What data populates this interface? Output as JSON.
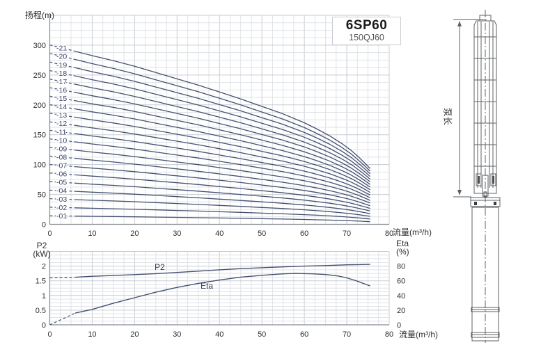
{
  "colors": {
    "curve": "#44506f",
    "grid_minor": "#dfe2e7",
    "grid_major": "#c6ccd3",
    "axis": "#878d94",
    "text": "#2e2e2e",
    "stage_label": "#3a4466",
    "title_border": "#c9cdd3"
  },
  "pump_diagram": {
    "length_label": "泵长"
  },
  "chart_data": [
    {
      "type": "line",
      "title": "6SP60",
      "subtitle": "150QJ60",
      "xlabel": "流量(m³/h)",
      "ylabel": "扬程(m)",
      "xlim": [
        0,
        80
      ],
      "ylim": [
        0,
        350
      ],
      "xticks": [
        0,
        10,
        20,
        30,
        40,
        50,
        60,
        70,
        80
      ],
      "yticks": [
        0,
        50,
        100,
        150,
        200,
        250,
        300
      ],
      "grid": {
        "on": true,
        "minor_x_step": 2.5,
        "minor_y_step": 12.5,
        "major_x_step": 10,
        "major_y_step": 50
      },
      "dashed_until": 6,
      "stages": [
        "-01",
        "-02",
        "-03",
        "-04",
        "-05",
        "-06",
        "-07",
        "-08",
        "-09",
        "-10",
        "-11",
        "-12",
        "-13",
        "-14",
        "-15",
        "-16",
        "-17",
        "-18",
        "-19",
        "-20",
        "-21"
      ],
      "per_stage_curve": {
        "comment": "head of one stage vs flow; curve N = N x head_per_stage",
        "flow": [
          0,
          3,
          6,
          10,
          15,
          20,
          25,
          30,
          35,
          40,
          45,
          50,
          55,
          60,
          63,
          66,
          69,
          71,
          73,
          74.5,
          75.5
        ],
        "head_per_stage": [
          14.3,
          14.05,
          13.8,
          13.45,
          13.05,
          12.6,
          12.1,
          11.6,
          11.1,
          10.55,
          10.0,
          9.4,
          8.8,
          8.1,
          7.6,
          7.05,
          6.4,
          5.9,
          5.3,
          4.8,
          4.45
        ]
      }
    },
    {
      "type": "line",
      "xlabel": "流量(m³/h)",
      "ylabel_left": "P2",
      "ylabel_left_unit": "(kW)",
      "ylabel_right": "Eta",
      "ylabel_right_unit": "(%)",
      "xlim": [
        0,
        80
      ],
      "ylim_left": [
        0,
        2.5
      ],
      "ylim_right": [
        0,
        100
      ],
      "xticks": [
        0,
        10,
        20,
        30,
        40,
        50,
        60,
        70,
        80
      ],
      "yticks_left": [
        "0",
        "0.5",
        "1",
        "1.5",
        "2"
      ],
      "yticks_right": [
        0,
        20,
        40,
        60,
        80
      ],
      "grid": {
        "on": true,
        "minor_x_step": 2.5,
        "minor_y_step_kw": 0.125,
        "major_y_step_kw": 0.5
      },
      "dashed_until": 6,
      "series": [
        {
          "name": "P2",
          "axis": "left",
          "x": [
            0,
            6,
            10,
            15,
            20,
            25,
            30,
            35,
            40,
            45,
            50,
            55,
            60,
            65,
            70,
            75.5
          ],
          "y": [
            1.6,
            1.62,
            1.655,
            1.68,
            1.71,
            1.745,
            1.785,
            1.83,
            1.875,
            1.915,
            1.945,
            1.975,
            2.0,
            2.02,
            2.045,
            2.06
          ]
        },
        {
          "name": "Eta",
          "axis": "right",
          "x": [
            0,
            6,
            10,
            15,
            20,
            25,
            30,
            35,
            40,
            45,
            50,
            55,
            58,
            62,
            65,
            68,
            70,
            72,
            75.5
          ],
          "y": [
            0,
            16,
            21,
            29.5,
            37,
            44.5,
            51,
            56.5,
            61,
            65,
            67.5,
            69.5,
            70,
            69.5,
            68.5,
            66.5,
            64,
            60.5,
            53
          ]
        }
      ]
    }
  ]
}
